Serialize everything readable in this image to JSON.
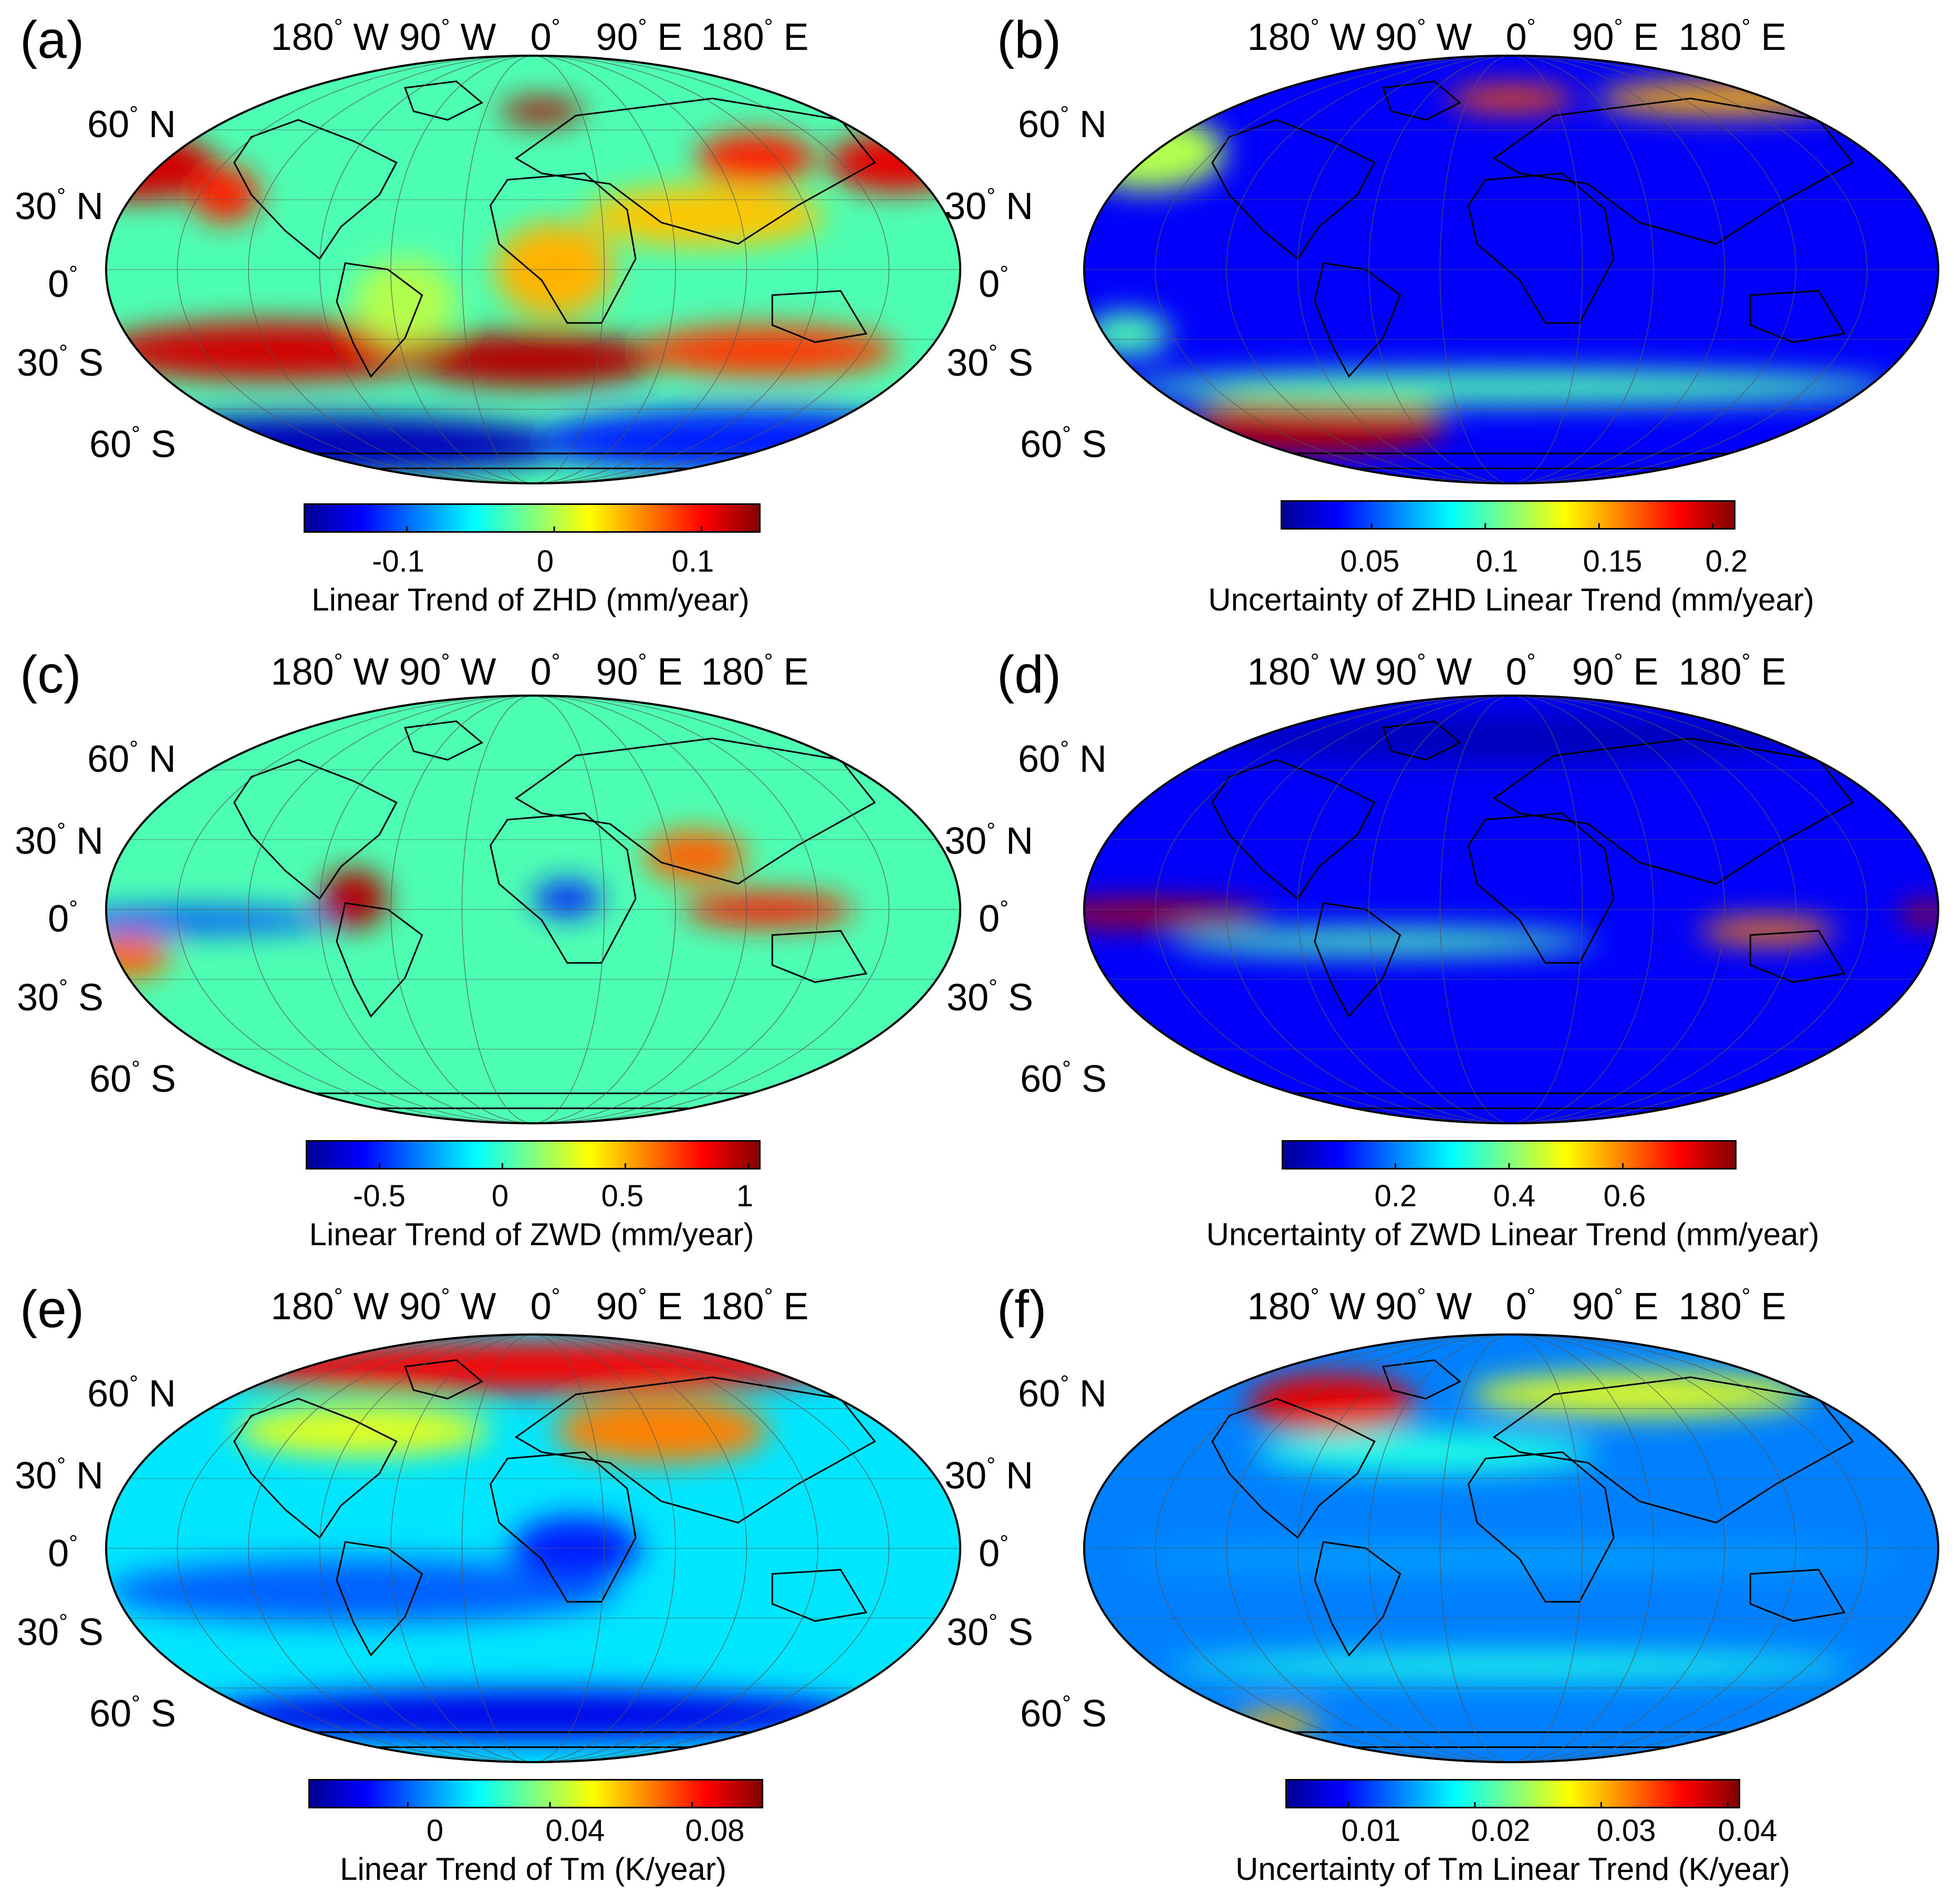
{
  "colormap": [
    "#00008f",
    "#0000ff",
    "#0080ff",
    "#00ffff",
    "#80ff80",
    "#ffff00",
    "#ff8000",
    "#ff0000",
    "#800000"
  ],
  "outline_color": "#000000",
  "grid_color": "#555555",
  "chart_data": [
    {
      "type": "heatmap",
      "panel": "(a)",
      "lon_labels": [
        "180° W",
        "90° W",
        "0°",
        "90° E",
        "180° E"
      ],
      "lat_labels": [
        "60° N",
        "30° N",
        "0°",
        "30° S",
        "60° S"
      ],
      "colorbar": {
        "min": -0.17,
        "max": 0.14,
        "ticks": [
          "-0.1",
          "0",
          "0.1"
        ],
        "tick_values": [
          -0.1,
          0,
          0.1
        ]
      },
      "title": "Linear Trend of ZHD (mm/year)"
    },
    {
      "type": "heatmap",
      "panel": "(b)",
      "lon_labels": [
        "180° W",
        "90° W",
        "0°",
        "90° E",
        "180° E"
      ],
      "lat_labels": [
        "60° N",
        "30° N",
        "0°",
        "30° S",
        "60° S"
      ],
      "colorbar": {
        "min": 0.01,
        "max": 0.21,
        "ticks": [
          "0.05",
          "0.1",
          "0.15",
          "0.2"
        ],
        "tick_values": [
          0.05,
          0.1,
          0.15,
          0.2
        ]
      },
      "title": "Uncertainty of ZHD Linear Trend (mm/year)"
    },
    {
      "type": "heatmap",
      "panel": "(c)",
      "lon_labels": [
        "180° W",
        "90° W",
        "0°",
        "90° E",
        "180° E"
      ],
      "lat_labels": [
        "60° N",
        "30° N",
        "0°",
        "30° S",
        "60° S"
      ],
      "colorbar": {
        "min": -0.8,
        "max": 1.05,
        "ticks": [
          "-0.5",
          "0",
          "0.5",
          "1"
        ],
        "tick_values": [
          -0.5,
          0,
          0.5,
          1
        ]
      },
      "title": "Linear Trend of ZWD (mm/year)"
    },
    {
      "type": "heatmap",
      "panel": "(d)",
      "lon_labels": [
        "180° W",
        "90° W",
        "0°",
        "90° E",
        "180° E"
      ],
      "lat_labels": [
        "60° N",
        "30° N",
        "0°",
        "30° S",
        "60° S"
      ],
      "colorbar": {
        "min": 0.0,
        "max": 0.8,
        "ticks": [
          "0.2",
          "0.4",
          "0.6"
        ],
        "tick_values": [
          0.2,
          0.4,
          0.6
        ]
      },
      "title": "Uncertainty of ZWD Linear Trend (mm/year)"
    },
    {
      "type": "heatmap",
      "panel": "(e)",
      "lon_labels": [
        "180° W",
        "90° W",
        "0°",
        "90° E",
        "180° E"
      ],
      "lat_labels": [
        "60° N",
        "30° N",
        "0°",
        "30° S",
        "60° S"
      ],
      "colorbar": {
        "min": -0.028,
        "max": 0.1,
        "ticks": [
          "0",
          "0.04",
          "0.08"
        ],
        "tick_values": [
          0,
          0.04,
          0.08
        ]
      },
      "title": "Linear Trend of Tm (K/year)"
    },
    {
      "type": "heatmap",
      "panel": "(f)",
      "lon_labels": [
        "180° W",
        "90° W",
        "0°",
        "90° E",
        "180° E"
      ],
      "lat_labels": [
        "60° N",
        "30° N",
        "0°",
        "30° S",
        "60° S"
      ],
      "colorbar": {
        "min": 0.005,
        "max": 0.041,
        "ticks": [
          "0.01",
          "0.02",
          "0.03",
          "0.04"
        ],
        "tick_values": [
          0.01,
          0.02,
          0.03,
          0.04
        ]
      },
      "title": "Uncertainty of Tm Linear Trend (K/year)"
    }
  ]
}
